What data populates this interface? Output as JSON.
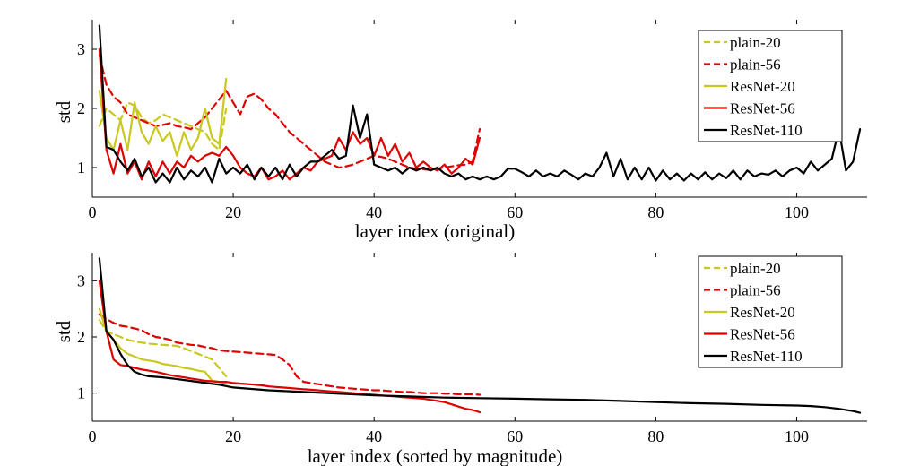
{
  "chart_data": [
    {
      "type": "line",
      "xlabel": "layer index (original)",
      "ylabel": "std",
      "xlim": [
        0,
        110
      ],
      "ylim": [
        0.5,
        3.5
      ],
      "xticks": [
        0,
        20,
        40,
        60,
        80,
        100
      ],
      "yticks": [
        1,
        2,
        3
      ],
      "legend": "top-right",
      "series": [
        {
          "name": "plain-20",
          "color": "#c8c81e",
          "dash": true,
          "x": [
            1,
            2,
            3,
            4,
            5,
            6,
            7,
            8,
            9,
            10,
            11,
            12,
            13,
            14,
            15,
            16,
            17,
            18,
            19
          ],
          "y": [
            1.7,
            2.0,
            1.9,
            1.8,
            2.1,
            2.05,
            1.85,
            1.75,
            1.8,
            1.9,
            1.85,
            1.8,
            1.75,
            1.7,
            1.65,
            1.6,
            1.4,
            1.3,
            2.0
          ]
        },
        {
          "name": "plain-56",
          "color": "#e00000",
          "dash": true,
          "x": [
            1,
            2,
            3,
            4,
            5,
            6,
            7,
            8,
            9,
            10,
            11,
            12,
            13,
            14,
            15,
            16,
            17,
            18,
            19,
            20,
            21,
            22,
            23,
            24,
            25,
            26,
            27,
            28,
            29,
            30,
            31,
            32,
            33,
            34,
            35,
            36,
            37,
            38,
            39,
            40,
            41,
            42,
            43,
            44,
            45,
            46,
            47,
            48,
            49,
            50,
            51,
            52,
            53,
            54,
            55
          ],
          "y": [
            2.9,
            2.4,
            2.2,
            2.1,
            1.9,
            1.85,
            1.8,
            1.75,
            1.7,
            1.72,
            1.75,
            1.7,
            1.68,
            1.65,
            1.75,
            1.85,
            2.0,
            2.15,
            2.3,
            2.1,
            1.9,
            2.2,
            2.25,
            2.15,
            2.0,
            1.9,
            1.75,
            1.6,
            1.5,
            1.4,
            1.3,
            1.2,
            1.1,
            1.05,
            1.0,
            1.02,
            1.05,
            1.1,
            1.15,
            1.2,
            1.18,
            1.15,
            1.1,
            1.05,
            1.0,
            0.98,
            0.97,
            0.96,
            0.98,
            1.0,
            1.02,
            1.04,
            1.05,
            1.1,
            1.65
          ]
        },
        {
          "name": "ResNet-20",
          "color": "#c8c81e",
          "dash": false,
          "x": [
            1,
            2,
            3,
            4,
            5,
            6,
            7,
            8,
            9,
            10,
            11,
            12,
            13,
            14,
            15,
            16,
            17,
            18,
            19
          ],
          "y": [
            2.3,
            1.5,
            1.3,
            1.8,
            1.3,
            2.1,
            1.6,
            1.4,
            1.7,
            1.45,
            1.6,
            1.2,
            1.6,
            1.3,
            1.5,
            2.0,
            1.5,
            1.4,
            2.5
          ]
        },
        {
          "name": "ResNet-56",
          "color": "#e00000",
          "dash": false,
          "x": [
            1,
            2,
            3,
            4,
            5,
            6,
            7,
            8,
            9,
            10,
            11,
            12,
            13,
            14,
            15,
            16,
            17,
            18,
            19,
            20,
            21,
            22,
            23,
            24,
            25,
            26,
            27,
            28,
            29,
            30,
            31,
            32,
            33,
            34,
            35,
            36,
            37,
            38,
            39,
            40,
            41,
            42,
            43,
            44,
            45,
            46,
            47,
            48,
            49,
            50,
            51,
            52,
            53,
            54,
            55
          ],
          "y": [
            3.0,
            1.3,
            0.9,
            1.4,
            0.9,
            1.1,
            0.8,
            1.1,
            0.85,
            1.1,
            0.9,
            1.1,
            1.0,
            1.2,
            1.1,
            1.2,
            1.25,
            1.2,
            1.35,
            1.2,
            1.0,
            0.9,
            0.85,
            1.0,
            0.8,
            0.85,
            0.95,
            0.8,
            0.9,
            1.0,
            0.95,
            1.1,
            1.15,
            1.2,
            1.5,
            1.3,
            1.6,
            1.4,
            1.5,
            1.2,
            1.5,
            1.2,
            1.4,
            1.1,
            1.25,
            1.0,
            1.1,
            1.0,
            0.95,
            1.05,
            0.9,
            1.0,
            1.15,
            1.05,
            1.5
          ]
        },
        {
          "name": "ResNet-110",
          "color": "#000000",
          "dash": false,
          "x": [
            1,
            2,
            3,
            4,
            5,
            6,
            7,
            8,
            9,
            10,
            11,
            12,
            13,
            14,
            15,
            16,
            17,
            18,
            19,
            20,
            21,
            22,
            23,
            24,
            25,
            26,
            27,
            28,
            29,
            30,
            31,
            32,
            33,
            34,
            35,
            36,
            37,
            38,
            39,
            40,
            41,
            42,
            43,
            44,
            45,
            46,
            47,
            48,
            49,
            50,
            51,
            52,
            53,
            54,
            55,
            56,
            57,
            58,
            59,
            60,
            61,
            62,
            63,
            64,
            65,
            66,
            67,
            68,
            69,
            70,
            71,
            72,
            73,
            74,
            75,
            76,
            77,
            78,
            79,
            80,
            81,
            82,
            83,
            84,
            85,
            86,
            87,
            88,
            89,
            90,
            91,
            92,
            93,
            94,
            95,
            96,
            97,
            98,
            99,
            100,
            101,
            102,
            103,
            104,
            105,
            106,
            107,
            108,
            109
          ],
          "y": [
            3.4,
            1.35,
            1.3,
            1.1,
            0.95,
            1.15,
            0.85,
            1.0,
            0.75,
            0.9,
            0.75,
            1.0,
            0.8,
            0.95,
            0.85,
            1.0,
            0.75,
            1.15,
            0.9,
            1.0,
            0.9,
            1.05,
            0.8,
            1.0,
            0.85,
            1.0,
            0.8,
            1.05,
            0.85,
            1.0,
            1.1,
            1.1,
            1.2,
            1.3,
            1.15,
            1.2,
            2.05,
            1.5,
            1.9,
            1.05,
            1.0,
            0.95,
            1.0,
            0.9,
            1.0,
            0.95,
            1.0,
            0.95,
            1.0,
            0.9,
            0.85,
            0.9,
            0.8,
            0.85,
            0.8,
            0.85,
            0.8,
            0.85,
            0.98,
            0.98,
            0.92,
            0.85,
            0.95,
            0.85,
            0.9,
            0.85,
            0.95,
            0.88,
            0.8,
            0.9,
            0.85,
            1.0,
            1.25,
            0.85,
            1.15,
            0.8,
            1.0,
            0.8,
            1.0,
            0.78,
            0.95,
            0.8,
            0.9,
            0.78,
            0.9,
            0.8,
            0.92,
            0.8,
            0.9,
            0.82,
            0.95,
            0.8,
            0.95,
            0.85,
            0.9,
            0.88,
            0.95,
            0.85,
            0.95,
            1.0,
            0.9,
            1.1,
            0.95,
            1.05,
            1.15,
            1.65,
            0.95,
            1.1,
            1.65
          ]
        }
      ]
    },
    {
      "type": "line",
      "xlabel": "layer index (sorted by magnitude)",
      "ylabel": "std",
      "xlim": [
        0,
        110
      ],
      "ylim": [
        0.5,
        3.5
      ],
      "xticks": [
        0,
        20,
        40,
        60,
        80,
        100
      ],
      "yticks": [
        1,
        2,
        3
      ],
      "legend": "top-right",
      "series": [
        {
          "name": "plain-20",
          "color": "#c8c81e",
          "dash": true,
          "x": [
            1,
            2,
            3,
            4,
            5,
            6,
            7,
            8,
            9,
            10,
            11,
            12,
            13,
            14,
            15,
            16,
            17,
            18,
            19
          ],
          "y": [
            2.3,
            2.1,
            2.05,
            2.0,
            1.95,
            1.92,
            1.9,
            1.88,
            1.87,
            1.86,
            1.85,
            1.84,
            1.8,
            1.75,
            1.7,
            1.65,
            1.6,
            1.45,
            1.3
          ]
        },
        {
          "name": "plain-56",
          "color": "#e00000",
          "dash": true,
          "x": [
            1,
            2,
            3,
            4,
            5,
            6,
            7,
            8,
            9,
            10,
            11,
            12,
            13,
            14,
            15,
            16,
            17,
            18,
            19,
            20,
            21,
            22,
            23,
            24,
            25,
            26,
            27,
            28,
            29,
            30,
            31,
            32,
            33,
            34,
            35,
            36,
            37,
            38,
            39,
            40,
            41,
            42,
            43,
            44,
            45,
            46,
            47,
            48,
            49,
            50,
            51,
            52,
            53,
            54,
            55
          ],
          "y": [
            2.4,
            2.32,
            2.25,
            2.2,
            2.18,
            2.15,
            2.12,
            2.05,
            2.0,
            1.98,
            1.95,
            1.9,
            1.88,
            1.86,
            1.85,
            1.82,
            1.8,
            1.76,
            1.75,
            1.74,
            1.73,
            1.72,
            1.71,
            1.7,
            1.69,
            1.68,
            1.6,
            1.5,
            1.3,
            1.2,
            1.18,
            1.16,
            1.14,
            1.12,
            1.1,
            1.09,
            1.08,
            1.07,
            1.06,
            1.05,
            1.05,
            1.04,
            1.03,
            1.02,
            1.02,
            1.01,
            1.0,
            1.0,
            1.0,
            0.99,
            0.99,
            0.98,
            0.98,
            0.98,
            0.97
          ]
        },
        {
          "name": "ResNet-20",
          "color": "#c8c81e",
          "dash": false,
          "x": [
            1,
            2,
            3,
            4,
            5,
            6,
            7,
            8,
            9,
            10,
            11,
            12,
            13,
            14,
            15,
            16,
            17,
            18,
            19
          ],
          "y": [
            2.5,
            2.1,
            1.95,
            1.8,
            1.7,
            1.65,
            1.6,
            1.58,
            1.56,
            1.52,
            1.5,
            1.48,
            1.45,
            1.43,
            1.4,
            1.38,
            1.22,
            1.2,
            1.18
          ]
        },
        {
          "name": "ResNet-56",
          "color": "#e00000",
          "dash": false,
          "x": [
            1,
            2,
            3,
            4,
            5,
            6,
            7,
            8,
            9,
            10,
            11,
            12,
            13,
            14,
            15,
            16,
            17,
            18,
            19,
            20,
            21,
            22,
            23,
            24,
            25,
            26,
            27,
            28,
            29,
            30,
            31,
            32,
            33,
            34,
            35,
            36,
            37,
            38,
            39,
            40,
            41,
            42,
            43,
            44,
            45,
            46,
            47,
            48,
            49,
            50,
            51,
            52,
            53,
            54,
            55
          ],
          "y": [
            3.0,
            2.1,
            1.6,
            1.5,
            1.48,
            1.45,
            1.42,
            1.4,
            1.38,
            1.35,
            1.32,
            1.3,
            1.28,
            1.26,
            1.24,
            1.22,
            1.21,
            1.2,
            1.2,
            1.18,
            1.17,
            1.16,
            1.15,
            1.14,
            1.12,
            1.11,
            1.1,
            1.09,
            1.08,
            1.07,
            1.06,
            1.05,
            1.04,
            1.03,
            1.02,
            1.01,
            1.0,
            0.99,
            0.98,
            0.97,
            0.96,
            0.95,
            0.94,
            0.93,
            0.92,
            0.91,
            0.9,
            0.88,
            0.86,
            0.84,
            0.8,
            0.76,
            0.72,
            0.7,
            0.66
          ]
        },
        {
          "name": "ResNet-110",
          "color": "#000000",
          "dash": false,
          "x": [
            1,
            2,
            3,
            4,
            5,
            6,
            7,
            8,
            9,
            10,
            12,
            15,
            18,
            20,
            25,
            30,
            35,
            40,
            45,
            50,
            55,
            60,
            65,
            70,
            75,
            80,
            85,
            90,
            95,
            100,
            102,
            104,
            106,
            108,
            109
          ],
          "y": [
            3.4,
            2.1,
            1.95,
            1.7,
            1.5,
            1.38,
            1.33,
            1.3,
            1.29,
            1.28,
            1.25,
            1.2,
            1.15,
            1.1,
            1.05,
            1.02,
            0.99,
            0.96,
            0.94,
            0.92,
            0.91,
            0.9,
            0.89,
            0.88,
            0.86,
            0.84,
            0.82,
            0.81,
            0.79,
            0.78,
            0.77,
            0.75,
            0.72,
            0.68,
            0.65
          ]
        }
      ]
    }
  ]
}
